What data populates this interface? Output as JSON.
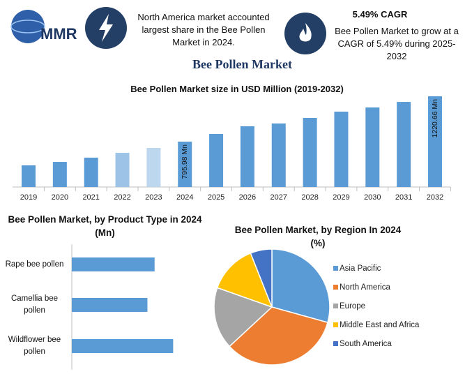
{
  "header": {
    "logo": "MMR",
    "note1": "North America market accounted largest share in the Bee Pollen Market in 2024.",
    "cagr_title": "5.49% CAGR",
    "note2": "Bee Pollen Market to grow at a CAGR of 5.49% during 2025-2032"
  },
  "title": "Bee Pollen Market",
  "chart_data": [
    {
      "type": "bar",
      "title": "Bee Pollen Market size in USD Million (2019-2032)",
      "categories": [
        "2019",
        "2020",
        "2021",
        "2022",
        "2023",
        "2024",
        "2025",
        "2026",
        "2027",
        "2028",
        "2029",
        "2030",
        "2031",
        "2032"
      ],
      "values": [
        574,
        606,
        646,
        691,
        737,
        795.98,
        868,
        940,
        966,
        1018,
        1077,
        1116,
        1168,
        1220.66
      ],
      "value_labels": [
        null,
        null,
        null,
        null,
        null,
        "795.98 Mn",
        null,
        null,
        null,
        null,
        null,
        null,
        null,
        "1220.66 Mn"
      ],
      "colors": [
        "#5b9bd5",
        "#5b9bd5",
        "#5b9bd5",
        "#9dc3e6",
        "#bdd7ee",
        "#5b9bd5",
        "#5b9bd5",
        "#5b9bd5",
        "#5b9bd5",
        "#5b9bd5",
        "#5b9bd5",
        "#5b9bd5",
        "#5b9bd5",
        "#5b9bd5"
      ],
      "ylim": [
        371,
        1250
      ]
    },
    {
      "type": "barh",
      "title": "Bee Pollen Market, by Product Type in 2024 (Mn)",
      "categories": [
        "Rape bee pollen",
        "Camellia bee pollen",
        "Wildflower bee pollen"
      ],
      "values": [
        254,
        232,
        311
      ],
      "color": "#5b9bd5",
      "xlim": [
        0,
        400
      ]
    },
    {
      "type": "pie",
      "title": "Bee Pollen Market, by Region In 2024 (%)",
      "categories": [
        "Asia Pacific",
        "North America",
        "Europe",
        "Middle East and Africa",
        "South America"
      ],
      "values": [
        29.3,
        33.8,
        17.3,
        13.6,
        6.0
      ],
      "colors": [
        "#5b9bd5",
        "#ed7d31",
        "#a5a5a5",
        "#ffc000",
        "#4472c4"
      ],
      "legend": "right"
    }
  ]
}
